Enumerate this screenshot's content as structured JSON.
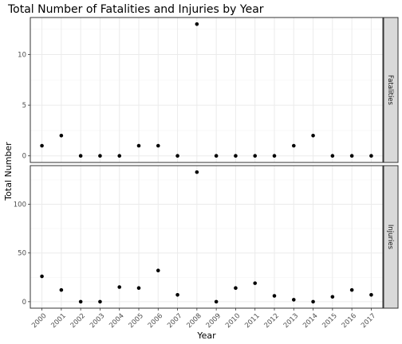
{
  "chart_data": {
    "type": "scatter",
    "title": "Total Number of Fatalities and Injuries by Year",
    "xlabel": "Year",
    "ylabel": "Total Number",
    "x": [
      "2000",
      "2001",
      "2002",
      "2003",
      "2004",
      "2005",
      "2006",
      "2007",
      "2008",
      "2009",
      "2010",
      "2011",
      "2012",
      "2013",
      "2014",
      "2015",
      "2016",
      "2017"
    ],
    "facets": [
      {
        "strip_label": "Fatalities",
        "values": [
          1,
          2,
          0,
          0,
          0,
          1,
          1,
          0,
          13,
          0,
          0,
          0,
          0,
          1,
          2,
          0,
          0,
          0
        ],
        "ylim": [
          -0.65,
          13.65
        ],
        "yticks": [
          0,
          5,
          10
        ],
        "ytick_labels": [
          "0",
          "5",
          "10"
        ]
      },
      {
        "strip_label": "Injuries",
        "values": [
          26,
          12,
          0,
          0,
          15,
          14,
          32,
          7,
          133,
          0,
          14,
          19,
          6,
          2,
          0,
          5,
          12,
          7
        ],
        "ylim": [
          -6.65,
          139.65
        ],
        "yticks": [
          0,
          50,
          100
        ],
        "ytick_labels": [
          "0",
          "50",
          "100"
        ]
      }
    ],
    "grid": true,
    "point_color": "#000000",
    "panel_border_color": "#333333",
    "grid_major_color": "#ebebeb",
    "grid_minor_color": "#f5f5f5",
    "strip_fill": "#d9d9d9"
  }
}
